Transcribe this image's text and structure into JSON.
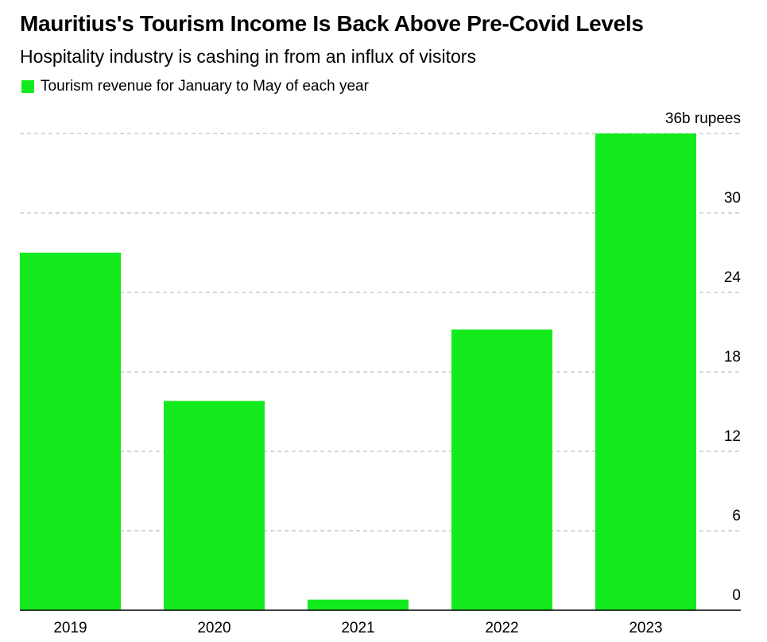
{
  "header": {
    "title": "Mauritius's Tourism Income Is Back Above Pre-Covid Levels",
    "subtitle": "Hospitality industry is cashing in from an influx of visitors"
  },
  "colors": {
    "bar": "#14eb1f",
    "gridline": "#cccccc",
    "axis": "#000000"
  },
  "chart_data": {
    "type": "bar",
    "title": "Mauritius's Tourism Income Is Back Above Pre-Covid Levels",
    "subtitle": "Hospitality industry is cashing in from an influx of visitors",
    "categories": [
      "2019",
      "2020",
      "2021",
      "2022",
      "2023"
    ],
    "series": [
      {
        "name": "Tourism revenue for January to May of each year",
        "values": [
          27.0,
          15.8,
          0.8,
          21.2,
          36.0
        ]
      }
    ],
    "y_unit_label": "36b rupees",
    "yticks": [
      {
        "value": 0,
        "label": "0"
      },
      {
        "value": 6,
        "label": "6"
      },
      {
        "value": 12,
        "label": "12"
      },
      {
        "value": 18,
        "label": "18"
      },
      {
        "value": 24,
        "label": "24"
      },
      {
        "value": 30,
        "label": "30"
      },
      {
        "value": 36,
        "label": "36b rupees"
      }
    ],
    "ylim": [
      0,
      36
    ],
    "grid": true,
    "legend_position": "top-left",
    "y_axis_side": "right"
  }
}
